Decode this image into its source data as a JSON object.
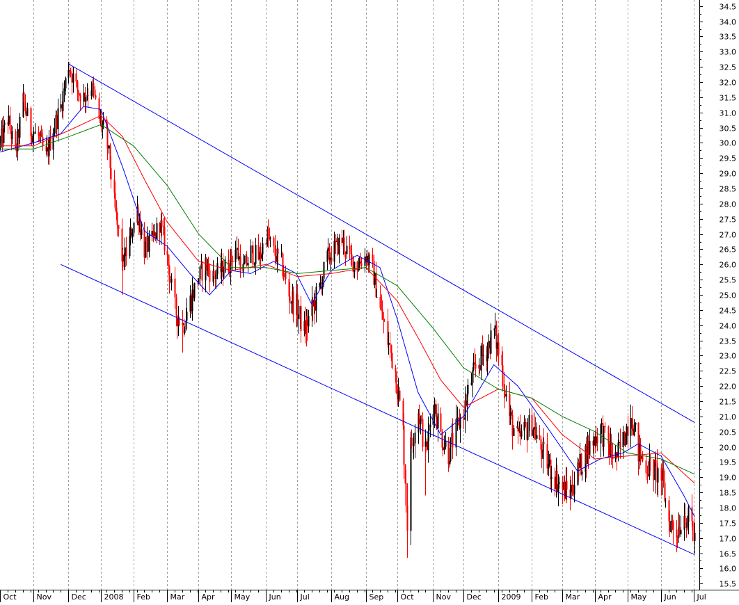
{
  "chart_data": {
    "type": "candlestick",
    "title": "",
    "xlabel": "",
    "ylabel": "",
    "ylim": [
      15.3,
      34.7
    ],
    "x_range": [
      "2007-10-01",
      "2009-07-05"
    ],
    "grid": {
      "vertical": true,
      "horizontal": false,
      "style": "dashed"
    },
    "y_ticks": [
      15.5,
      16.0,
      16.5,
      17.0,
      17.5,
      18.0,
      18.5,
      19.0,
      19.5,
      20.0,
      20.5,
      21.0,
      21.5,
      22.0,
      22.5,
      23.0,
      23.5,
      24.0,
      24.5,
      25.0,
      25.5,
      26.0,
      26.5,
      27.0,
      27.5,
      28.0,
      28.5,
      29.0,
      29.5,
      30.0,
      30.5,
      31.0,
      31.5,
      32.0,
      32.5,
      33.0,
      33.5,
      34.0,
      34.5
    ],
    "x_ticks": [
      {
        "label": "Oct",
        "date": "2007-10-01"
      },
      {
        "label": "Nov",
        "date": "2007-11-01"
      },
      {
        "label": "Dec",
        "date": "2007-12-03"
      },
      {
        "label": "2008",
        "date": "2008-01-02"
      },
      {
        "label": "Feb",
        "date": "2008-02-01"
      },
      {
        "label": "Mar",
        "date": "2008-03-03"
      },
      {
        "label": "Apr",
        "date": "2008-04-01"
      },
      {
        "label": "May",
        "date": "2008-05-01"
      },
      {
        "label": "Jun",
        "date": "2008-06-02"
      },
      {
        "label": "Jul",
        "date": "2008-07-01"
      },
      {
        "label": "Aug",
        "date": "2008-08-01"
      },
      {
        "label": "Sep",
        "date": "2008-09-02"
      },
      {
        "label": "Oct",
        "date": "2008-10-01"
      },
      {
        "label": "Nov",
        "date": "2008-11-03"
      },
      {
        "label": "Dec",
        "date": "2008-12-01"
      },
      {
        "label": "2009",
        "date": "2009-01-02"
      },
      {
        "label": "Feb",
        "date": "2009-02-02"
      },
      {
        "label": "Mar",
        "date": "2009-03-02"
      },
      {
        "label": "Apr",
        "date": "2009-04-01"
      },
      {
        "label": "May",
        "date": "2009-05-01"
      },
      {
        "label": "Jun",
        "date": "2009-06-01"
      },
      {
        "label": "Jul",
        "date": "2009-07-01"
      }
    ],
    "price_path": [
      [
        "2007-10-01",
        30.0
      ],
      [
        "2007-10-08",
        30.8
      ],
      [
        "2007-10-15",
        29.6
      ],
      [
        "2007-10-22",
        31.4
      ],
      [
        "2007-10-29",
        30.4
      ],
      [
        "2007-11-05",
        30.2
      ],
      [
        "2007-11-12",
        29.5
      ],
      [
        "2007-11-19",
        30.5
      ],
      [
        "2007-11-26",
        31.2
      ],
      [
        "2007-12-03",
        32.6
      ],
      [
        "2007-12-10",
        31.8
      ],
      [
        "2007-12-17",
        31.5
      ],
      [
        "2007-12-24",
        31.9
      ],
      [
        "2007-12-31",
        30.8
      ],
      [
        "2008-01-07",
        30.2
      ],
      [
        "2008-01-14",
        28.0
      ],
      [
        "2008-01-22",
        26.0
      ],
      [
        "2008-01-28",
        26.8
      ],
      [
        "2008-02-04",
        27.8
      ],
      [
        "2008-02-11",
        26.5
      ],
      [
        "2008-02-19",
        26.8
      ],
      [
        "2008-02-25",
        27.4
      ],
      [
        "2008-03-03",
        26.2
      ],
      [
        "2008-03-10",
        24.5
      ],
      [
        "2008-03-17",
        24.0
      ],
      [
        "2008-03-24",
        24.8
      ],
      [
        "2008-03-31",
        25.5
      ],
      [
        "2008-04-07",
        26.0
      ],
      [
        "2008-04-14",
        25.6
      ],
      [
        "2008-04-21",
        25.8
      ],
      [
        "2008-04-28",
        26.0
      ],
      [
        "2008-05-05",
        26.5
      ],
      [
        "2008-05-12",
        25.8
      ],
      [
        "2008-05-19",
        26.4
      ],
      [
        "2008-05-27",
        26.2
      ],
      [
        "2008-06-02",
        27.0
      ],
      [
        "2008-06-09",
        26.4
      ],
      [
        "2008-06-16",
        26.0
      ],
      [
        "2008-06-23",
        25.0
      ],
      [
        "2008-06-30",
        24.6
      ],
      [
        "2008-07-07",
        23.8
      ],
      [
        "2008-07-14",
        24.5
      ],
      [
        "2008-07-21",
        25.2
      ],
      [
        "2008-07-28",
        26.2
      ],
      [
        "2008-08-04",
        26.5
      ],
      [
        "2008-08-11",
        26.8
      ],
      [
        "2008-08-18",
        26.2
      ],
      [
        "2008-08-25",
        26.0
      ],
      [
        "2008-09-02",
        26.3
      ],
      [
        "2008-09-08",
        25.8
      ],
      [
        "2008-09-15",
        24.5
      ],
      [
        "2008-09-22",
        23.5
      ],
      [
        "2008-09-29",
        22.5
      ],
      [
        "2008-10-06",
        20.5
      ],
      [
        "2008-10-10",
        17.5
      ],
      [
        "2008-10-13",
        20.0
      ],
      [
        "2008-10-20",
        21.2
      ],
      [
        "2008-10-27",
        19.8
      ],
      [
        "2008-11-03",
        21.5
      ],
      [
        "2008-11-10",
        20.4
      ],
      [
        "2008-11-17",
        19.8
      ],
      [
        "2008-11-24",
        20.5
      ],
      [
        "2008-12-01",
        21.2
      ],
      [
        "2008-12-08",
        22.2
      ],
      [
        "2008-12-15",
        22.8
      ],
      [
        "2008-12-22",
        23.2
      ],
      [
        "2008-12-29",
        23.8
      ],
      [
        "2009-01-05",
        22.6
      ],
      [
        "2009-01-12",
        21.0
      ],
      [
        "2009-01-20",
        20.2
      ],
      [
        "2009-01-26",
        20.5
      ],
      [
        "2009-02-02",
        20.8
      ],
      [
        "2009-02-09",
        20.0
      ],
      [
        "2009-02-17",
        19.4
      ],
      [
        "2009-02-23",
        19.0
      ],
      [
        "2009-03-02",
        18.6
      ],
      [
        "2009-03-09",
        18.5
      ],
      [
        "2009-03-16",
        19.2
      ],
      [
        "2009-03-23",
        19.8
      ],
      [
        "2009-03-30",
        20.2
      ],
      [
        "2009-04-06",
        20.6
      ],
      [
        "2009-04-13",
        20.0
      ],
      [
        "2009-04-20",
        19.6
      ],
      [
        "2009-04-27",
        20.2
      ],
      [
        "2009-05-04",
        21.2
      ],
      [
        "2009-05-11",
        19.8
      ],
      [
        "2009-05-18",
        19.4
      ],
      [
        "2009-05-26",
        19.2
      ],
      [
        "2009-06-01",
        19.0
      ],
      [
        "2009-06-08",
        17.6
      ],
      [
        "2009-06-15",
        17.2
      ],
      [
        "2009-06-22",
        17.8
      ],
      [
        "2009-06-29",
        17.4
      ],
      [
        "2009-07-02",
        17.0
      ]
    ],
    "series": [
      {
        "kind": "moving-average",
        "color": "#0000ff",
        "points": [
          [
            "2007-10-01",
            29.7
          ],
          [
            "2007-11-01",
            30.0
          ],
          [
            "2007-11-26",
            30.3
          ],
          [
            "2007-12-17",
            31.2
          ],
          [
            "2008-01-02",
            31.1
          ],
          [
            "2008-01-22",
            29.2
          ],
          [
            "2008-02-11",
            27.1
          ],
          [
            "2008-03-03",
            26.6
          ],
          [
            "2008-03-24",
            25.7
          ],
          [
            "2008-04-11",
            25.0
          ],
          [
            "2008-05-01",
            25.8
          ],
          [
            "2008-05-19",
            25.7
          ],
          [
            "2008-06-09",
            26.1
          ],
          [
            "2008-06-30",
            25.7
          ],
          [
            "2008-07-14",
            24.7
          ],
          [
            "2008-08-01",
            25.8
          ],
          [
            "2008-08-25",
            26.3
          ],
          [
            "2008-09-15",
            25.9
          ],
          [
            "2008-10-01",
            24.2
          ],
          [
            "2008-10-20",
            21.8
          ],
          [
            "2008-11-10",
            20.4
          ],
          [
            "2008-12-01",
            21.0
          ],
          [
            "2008-12-29",
            22.7
          ],
          [
            "2009-01-20",
            22.0
          ],
          [
            "2009-02-17",
            20.6
          ],
          [
            "2009-03-16",
            19.2
          ],
          [
            "2009-04-06",
            19.6
          ],
          [
            "2009-04-27",
            19.8
          ],
          [
            "2009-05-11",
            20.1
          ],
          [
            "2009-06-01",
            19.7
          ],
          [
            "2009-06-22",
            18.4
          ],
          [
            "2009-07-02",
            17.7
          ]
        ]
      },
      {
        "kind": "moving-average",
        "color": "#ff0000",
        "points": [
          [
            "2007-10-01",
            29.9
          ],
          [
            "2007-11-01",
            29.9
          ],
          [
            "2007-12-03",
            30.4
          ],
          [
            "2008-01-02",
            30.9
          ],
          [
            "2008-01-22",
            30.2
          ],
          [
            "2008-02-11",
            28.8
          ],
          [
            "2008-03-03",
            27.4
          ],
          [
            "2008-04-01",
            26.1
          ],
          [
            "2008-05-01",
            25.8
          ],
          [
            "2008-06-02",
            26.0
          ],
          [
            "2008-07-01",
            25.6
          ],
          [
            "2008-08-01",
            25.7
          ],
          [
            "2008-09-02",
            25.9
          ],
          [
            "2008-10-01",
            24.8
          ],
          [
            "2008-10-20",
            23.6
          ],
          [
            "2008-11-10",
            22.2
          ],
          [
            "2008-12-01",
            21.3
          ],
          [
            "2009-01-02",
            21.9
          ],
          [
            "2009-02-02",
            21.6
          ],
          [
            "2009-03-02",
            20.4
          ],
          [
            "2009-04-01",
            19.6
          ],
          [
            "2009-05-01",
            19.7
          ],
          [
            "2009-06-01",
            19.8
          ],
          [
            "2009-07-02",
            18.8
          ]
        ]
      },
      {
        "kind": "moving-average",
        "color": "#008000",
        "points": [
          [
            "2007-10-01",
            29.8
          ],
          [
            "2007-11-01",
            29.8
          ],
          [
            "2007-12-03",
            30.2
          ],
          [
            "2008-01-02",
            30.6
          ],
          [
            "2008-02-01",
            29.9
          ],
          [
            "2008-03-03",
            28.6
          ],
          [
            "2008-04-01",
            27.0
          ],
          [
            "2008-05-01",
            25.9
          ],
          [
            "2008-06-02",
            25.9
          ],
          [
            "2008-07-01",
            25.7
          ],
          [
            "2008-08-01",
            25.8
          ],
          [
            "2008-09-02",
            25.9
          ],
          [
            "2008-10-01",
            25.3
          ],
          [
            "2008-11-03",
            23.9
          ],
          [
            "2008-12-01",
            22.6
          ],
          [
            "2009-01-02",
            21.9
          ],
          [
            "2009-02-02",
            21.6
          ],
          [
            "2009-03-02",
            21.0
          ],
          [
            "2009-04-01",
            20.5
          ],
          [
            "2009-05-01",
            19.8
          ],
          [
            "2009-06-01",
            19.6
          ],
          [
            "2009-07-02",
            19.1
          ]
        ]
      }
    ],
    "annotations": [
      {
        "kind": "trendline",
        "color": "#0000ff",
        "from": [
          "2007-12-03",
          32.6
        ],
        "to": [
          "2009-07-02",
          20.8
        ]
      },
      {
        "kind": "trendline",
        "color": "#0000ff",
        "from": [
          "2007-11-26",
          26.0
        ],
        "to": [
          "2009-07-02",
          16.45
        ]
      }
    ],
    "candle_colors": {
      "up": "#000000",
      "down": "#ff0000"
    }
  }
}
